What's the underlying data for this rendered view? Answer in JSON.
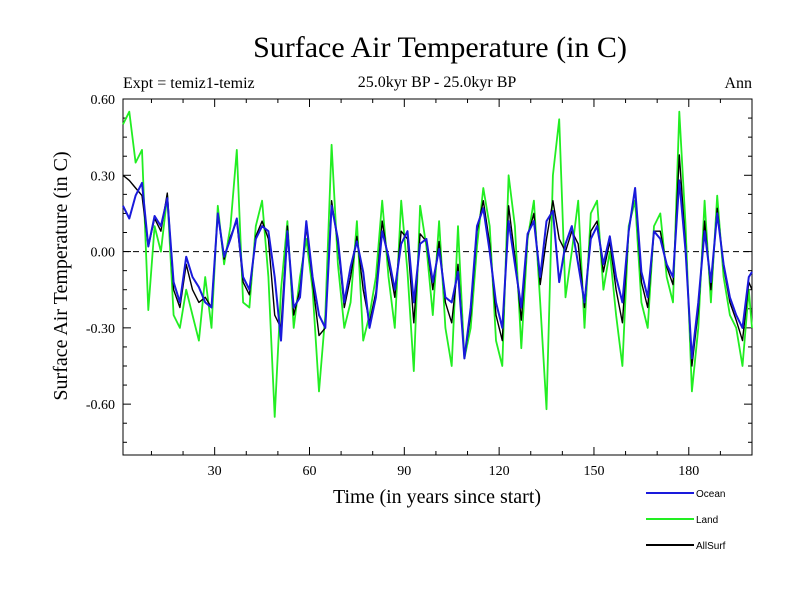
{
  "chart_data": {
    "type": "line",
    "title": "Surface Air Temperature (in C)",
    "subtitle": "25.0kyr BP - 25.0kyr BP",
    "left_label": "Expt = temiz1-temiz",
    "right_label": "Ann",
    "xlabel": "Time (in years since start)",
    "ylabel": "Surface Air Temperature (in C)",
    "xlim": [
      1,
      200
    ],
    "ylim": [
      -0.8,
      0.6
    ],
    "x_ticks": [
      30,
      60,
      90,
      120,
      150,
      180
    ],
    "y_ticks": [
      0.6,
      0.3,
      0.0,
      -0.3,
      -0.6
    ],
    "y_tick_labels": [
      "0.60",
      "0.30",
      "0.00",
      "-0.30",
      "-0.60"
    ],
    "x_tick_labels": [
      "30",
      "60",
      "90",
      "120",
      "150",
      "180"
    ],
    "zero_line": "dashed",
    "legend_position": "bottom-right",
    "series": [
      {
        "name": "Ocean",
        "color": "#1a1adc",
        "x": [
          1,
          3,
          5,
          7,
          9,
          11,
          13,
          15,
          17,
          19,
          21,
          23,
          25,
          27,
          29,
          31,
          33,
          35,
          37,
          39,
          41,
          43,
          45,
          47,
          49,
          51,
          53,
          55,
          57,
          59,
          61,
          63,
          65,
          67,
          69,
          71,
          73,
          75,
          77,
          79,
          81,
          83,
          85,
          87,
          89,
          91,
          93,
          95,
          97,
          99,
          101,
          103,
          105,
          107,
          109,
          111,
          113,
          115,
          117,
          119,
          121,
          123,
          125,
          127,
          129,
          131,
          133,
          135,
          137,
          139,
          141,
          143,
          145,
          147,
          149,
          151,
          153,
          155,
          157,
          159,
          161,
          163,
          165,
          167,
          169,
          171,
          173,
          175,
          177,
          179,
          181,
          183,
          185,
          187,
          189,
          191,
          193,
          195,
          197,
          199,
          200
        ],
        "values": [
          0.18,
          0.13,
          0.22,
          0.27,
          0.02,
          0.14,
          0.1,
          0.21,
          -0.12,
          -0.2,
          -0.02,
          -0.1,
          -0.14,
          -0.2,
          -0.22,
          0.15,
          -0.02,
          0.05,
          0.13,
          -0.1,
          -0.15,
          0.05,
          0.1,
          0.08,
          -0.1,
          -0.35,
          0.08,
          -0.22,
          -0.18,
          0.12,
          -0.1,
          -0.25,
          -0.3,
          0.18,
          0.05,
          -0.2,
          -0.06,
          0.04,
          -0.08,
          -0.3,
          -0.18,
          0.08,
          -0.02,
          -0.15,
          0.03,
          0.08,
          -0.2,
          0.03,
          0.05,
          -0.12,
          0.01,
          -0.18,
          -0.2,
          -0.08,
          -0.42,
          -0.22,
          0.1,
          0.17,
          0.0,
          -0.2,
          -0.3,
          0.12,
          -0.05,
          -0.22,
          0.07,
          0.12,
          -0.1,
          0.12,
          0.16,
          -0.12,
          0.03,
          0.1,
          -0.05,
          -0.2,
          0.05,
          0.1,
          -0.05,
          0.06,
          -0.1,
          -0.2,
          0.08,
          0.25,
          -0.08,
          -0.18,
          0.08,
          0.05,
          -0.05,
          -0.1,
          0.28,
          0.0,
          -0.42,
          -0.2,
          0.08,
          -0.12,
          0.15,
          -0.05,
          -0.18,
          -0.25,
          -0.3,
          -0.1,
          -0.08
        ]
      },
      {
        "name": "Land",
        "color": "#22ee22",
        "x": [
          1,
          3,
          5,
          7,
          9,
          11,
          13,
          15,
          17,
          19,
          21,
          23,
          25,
          27,
          29,
          31,
          33,
          35,
          37,
          39,
          41,
          43,
          45,
          47,
          49,
          51,
          53,
          55,
          57,
          59,
          61,
          63,
          65,
          67,
          69,
          71,
          73,
          75,
          77,
          79,
          81,
          83,
          85,
          87,
          89,
          91,
          93,
          95,
          97,
          99,
          101,
          103,
          105,
          107,
          109,
          111,
          113,
          115,
          117,
          119,
          121,
          123,
          125,
          127,
          129,
          131,
          133,
          135,
          137,
          139,
          141,
          143,
          145,
          147,
          149,
          151,
          153,
          155,
          157,
          159,
          161,
          163,
          165,
          167,
          169,
          171,
          173,
          175,
          177,
          179,
          181,
          183,
          185,
          187,
          189,
          191,
          193,
          195,
          197,
          199,
          200
        ],
        "values": [
          0.5,
          0.55,
          0.35,
          0.4,
          -0.23,
          0.1,
          0.0,
          0.22,
          -0.25,
          -0.3,
          -0.15,
          -0.25,
          -0.35,
          -0.1,
          -0.3,
          0.18,
          -0.05,
          0.1,
          0.4,
          -0.2,
          -0.22,
          0.1,
          0.2,
          -0.1,
          -0.65,
          -0.15,
          0.12,
          -0.3,
          -0.1,
          0.05,
          -0.15,
          -0.55,
          -0.25,
          0.42,
          -0.05,
          -0.3,
          -0.2,
          0.12,
          -0.35,
          -0.25,
          -0.1,
          0.2,
          -0.1,
          -0.3,
          0.2,
          -0.08,
          -0.47,
          0.18,
          0.02,
          -0.25,
          0.12,
          -0.3,
          -0.45,
          0.1,
          -0.42,
          -0.3,
          0.02,
          0.25,
          0.1,
          -0.35,
          -0.45,
          0.3,
          0.1,
          -0.38,
          0.05,
          0.2,
          -0.2,
          -0.62,
          0.3,
          0.52,
          -0.18,
          0.0,
          0.2,
          -0.3,
          0.15,
          0.2,
          -0.15,
          0.0,
          -0.25,
          -0.45,
          0.1,
          0.2,
          -0.2,
          -0.3,
          0.1,
          0.15,
          -0.1,
          -0.2,
          0.55,
          0.1,
          -0.55,
          -0.3,
          0.2,
          -0.2,
          0.22,
          -0.1,
          -0.25,
          -0.3,
          -0.45,
          -0.15,
          -0.3
        ]
      },
      {
        "name": "AllSurf",
        "color": "#000000",
        "x": [
          1,
          3,
          5,
          7,
          9,
          11,
          13,
          15,
          17,
          19,
          21,
          23,
          25,
          27,
          29,
          31,
          33,
          35,
          37,
          39,
          41,
          43,
          45,
          47,
          49,
          51,
          53,
          55,
          57,
          59,
          61,
          63,
          65,
          67,
          69,
          71,
          73,
          75,
          77,
          79,
          81,
          83,
          85,
          87,
          89,
          91,
          93,
          95,
          97,
          99,
          101,
          103,
          105,
          107,
          109,
          111,
          113,
          115,
          117,
          119,
          121,
          123,
          125,
          127,
          129,
          131,
          133,
          135,
          137,
          139,
          141,
          143,
          145,
          147,
          149,
          151,
          153,
          155,
          157,
          159,
          161,
          163,
          165,
          167,
          169,
          171,
          173,
          175,
          177,
          179,
          181,
          183,
          185,
          187,
          189,
          191,
          193,
          195,
          197,
          199,
          200
        ],
        "values": [
          0.3,
          0.28,
          0.25,
          0.22,
          0.02,
          0.13,
          0.08,
          0.23,
          -0.15,
          -0.22,
          -0.05,
          -0.15,
          -0.2,
          -0.18,
          -0.22,
          0.15,
          -0.03,
          0.06,
          0.12,
          -0.12,
          -0.17,
          0.06,
          0.12,
          0.05,
          -0.25,
          -0.3,
          0.1,
          -0.25,
          -0.15,
          0.1,
          -0.12,
          -0.33,
          -0.3,
          0.2,
          0.03,
          -0.22,
          -0.1,
          0.06,
          -0.15,
          -0.28,
          -0.16,
          0.12,
          -0.04,
          -0.18,
          0.08,
          0.05,
          -0.28,
          0.07,
          0.04,
          -0.15,
          0.04,
          -0.2,
          -0.28,
          -0.05,
          -0.42,
          -0.25,
          0.08,
          0.2,
          0.03,
          -0.25,
          -0.35,
          0.18,
          -0.02,
          -0.27,
          0.06,
          0.15,
          -0.13,
          0.05,
          0.2,
          0.05,
          0.0,
          0.08,
          0.03,
          -0.22,
          0.08,
          0.12,
          -0.08,
          0.04,
          -0.15,
          -0.28,
          0.08,
          0.24,
          -0.12,
          -0.22,
          0.08,
          0.08,
          -0.06,
          -0.13,
          0.38,
          0.02,
          -0.45,
          -0.23,
          0.12,
          -0.15,
          0.17,
          -0.06,
          -0.2,
          -0.27,
          -0.35,
          -0.12,
          -0.15
        ]
      }
    ]
  }
}
